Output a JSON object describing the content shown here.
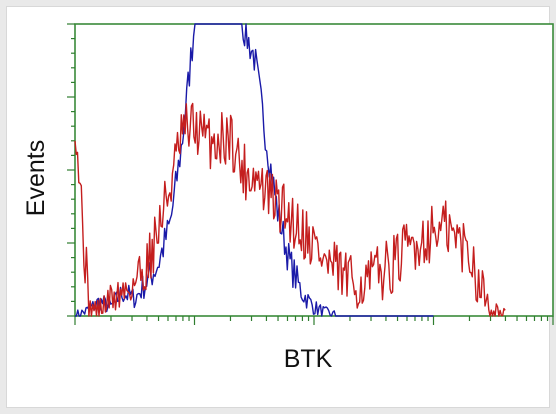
{
  "chart_data": {
    "type": "line",
    "title": "",
    "xlabel": "BTK",
    "ylabel": "Events",
    "x_scale": "log",
    "xlim": [
      1,
      10000
    ],
    "ylim": [
      0,
      100
    ],
    "grid": false,
    "legend": "none",
    "colors": {
      "axes": "#3a8a3a",
      "tick": "#2f7d2f",
      "series_blue": "#1a1aa8",
      "series_red": "#c41e1e"
    },
    "series": [
      {
        "values_x": [
          1.0,
          1.3,
          1.6,
          2.0,
          2.5,
          3.2,
          4.0,
          5.0,
          6.3,
          7.9,
          10,
          12.6,
          15.8,
          20,
          25,
          32,
          40,
          50,
          63,
          79,
          100,
          126,
          158,
          200,
          251,
          316,
          398,
          501,
          631,
          794,
          1000
        ],
        "values": [
          0,
          2,
          5,
          3,
          8,
          6,
          12,
          18,
          32,
          60,
          100,
          100,
          100,
          100,
          100,
          88,
          60,
          35,
          18,
          8,
          3,
          1,
          0,
          0,
          0,
          0,
          0,
          0,
          0,
          0,
          0
        ]
      },
      {
        "values_x": [
          1.0,
          1.3,
          1.6,
          2.0,
          2.5,
          3.2,
          4.0,
          5.0,
          6.3,
          7.9,
          10,
          12.6,
          15.8,
          20,
          25,
          32,
          40,
          50,
          63,
          79,
          100,
          126,
          158,
          200,
          251,
          316,
          398,
          501,
          631,
          794,
          1000,
          1259,
          1585,
          1995,
          2512,
          3162,
          3981
        ],
        "values": [
          70,
          3,
          2,
          6,
          8,
          12,
          18,
          30,
          45,
          62,
          65,
          60,
          60,
          62,
          50,
          48,
          42,
          38,
          34,
          30,
          25,
          18,
          15,
          12,
          10,
          14,
          16,
          19,
          24,
          26,
          29,
          30,
          26,
          22,
          10,
          2,
          0
        ]
      }
    ]
  }
}
